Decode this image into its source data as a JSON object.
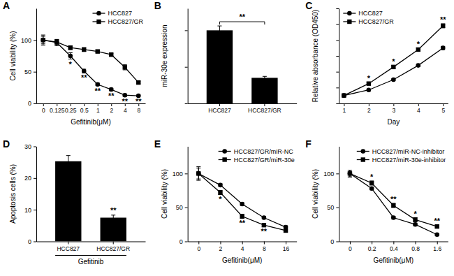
{
  "chart_data": [
    {
      "type": "line",
      "panel_label": "A",
      "categories": [
        "0",
        "0.125",
        "0.25",
        "0.5",
        "1",
        "2",
        "4",
        "8"
      ],
      "x_label": "Gefitinib(μM)",
      "y_label": "Cell viability (%)",
      "ylim": [
        0,
        150
      ],
      "yticks": [
        0,
        50,
        100
      ],
      "legend": "upper right",
      "series": [
        {
          "name": "HCC827",
          "color": "#000000",
          "marker": "circle",
          "values": [
            100,
            96,
            75,
            51,
            30,
            22,
            13,
            12
          ],
          "errors": [
            8,
            5,
            5,
            3,
            2,
            2,
            2,
            1
          ]
        },
        {
          "name": "HCC827/GR",
          "color": "#000000",
          "marker": "square",
          "values": [
            100,
            97,
            88,
            85,
            82,
            77,
            57,
            33
          ],
          "errors": [
            6,
            4,
            3,
            3,
            2,
            2,
            4,
            2
          ]
        }
      ],
      "significance": [
        null,
        null,
        "*",
        "**",
        "**",
        "**",
        "**",
        "**"
      ]
    },
    {
      "type": "bar",
      "panel_label": "B",
      "categories": [
        "HCC827",
        "HCC827/GR"
      ],
      "y_label": "miR-30e expression",
      "values": [
        1,
        0.35
      ],
      "errors": [
        0.06,
        0.02
      ],
      "color": "#000000",
      "ylim": [
        0,
        1.3
      ],
      "yticks": [
        0,
        0.5,
        1
      ],
      "tick_labels": "x",
      "significance": "**"
    },
    {
      "type": "line",
      "panel_label": "C",
      "x": [
        1,
        2,
        3,
        4,
        5
      ],
      "xlim": [
        0.8,
        5.2
      ],
      "xticks": [
        1,
        2,
        3,
        4,
        5
      ],
      "x_label": "Day",
      "y_label": "Relative absorbance (OD450)",
      "ylim": [
        0,
        12
      ],
      "yticks": [
        0,
        2,
        4,
        6,
        8,
        10,
        12
      ],
      "tick_labels": "x",
      "legend": "upper left",
      "series": [
        {
          "name": "HCC827",
          "color": "#000000",
          "marker": "circle",
          "values": [
            1,
            1.7,
            3,
            4.8,
            7
          ],
          "errors": [
            0.05,
            0.1,
            0.1,
            0.15,
            0.2
          ]
        },
        {
          "name": "HCC827/GR",
          "color": "#000000",
          "marker": "square",
          "values": [
            1,
            2.5,
            4.6,
            6.8,
            9.8
          ],
          "errors": [
            0.05,
            0.15,
            0.15,
            0.2,
            0.25
          ]
        }
      ],
      "significance": [
        null,
        "*",
        "*",
        "*",
        "**"
      ]
    },
    {
      "type": "bar",
      "panel_label": "D",
      "categories": [
        "HCC827",
        "HCC827/GR"
      ],
      "group_label": "Gefitinib",
      "y_label": "Apoptosis cells (%)",
      "values": [
        25.3,
        7.5
      ],
      "errors": [
        1.8,
        0.8
      ],
      "color": "#000000",
      "ylim": [
        0,
        30
      ],
      "yticks": [
        0,
        10,
        20,
        30
      ],
      "significance": [
        null,
        "**"
      ]
    },
    {
      "type": "line",
      "panel_label": "E",
      "categories": [
        "0",
        "2",
        "4",
        "8",
        "16"
      ],
      "x_label": "Gefitinib(μM)",
      "y_label": "Cell viability (%)",
      "ylim": [
        0,
        140
      ],
      "yticks": [
        0,
        50,
        100
      ],
      "legend": "upper right",
      "series": [
        {
          "name": "HCC827/GR/miR-NC",
          "color": "#000000",
          "marker": "circle",
          "values": [
            100,
            83,
            55,
            35,
            21
          ],
          "errors": [
            10,
            2,
            2,
            2,
            2
          ]
        },
        {
          "name": "HCC827/GR/miR-30e",
          "color": "#000000",
          "marker": "square",
          "values": [
            100,
            72,
            37,
            24,
            16
          ],
          "errors": [
            8,
            3,
            3,
            2,
            2
          ]
        }
      ],
      "significance": [
        null,
        "*",
        "**",
        "**",
        null
      ]
    },
    {
      "type": "line",
      "panel_label": "F",
      "categories": [
        "0",
        "0.2",
        "0.4",
        "0.8",
        "1.6"
      ],
      "x_label": "Gefitinib(μM)",
      "y_label": "Cell viability (%)",
      "ylim": [
        0,
        140
      ],
      "yticks": [
        0,
        50,
        100
      ],
      "legend": "upper right",
      "series": [
        {
          "name": "HCC827/miR-NC-inhibitor",
          "color": "#000000",
          "marker": "circle",
          "values": [
            100,
            78,
            35,
            25,
            10
          ],
          "errors": [
            5,
            2,
            2,
            2,
            1
          ]
        },
        {
          "name": "HCC827/miR-30e-inhibitor",
          "color": "#000000",
          "marker": "square",
          "values": [
            100,
            86,
            53,
            32,
            22
          ],
          "errors": [
            5,
            3,
            3,
            3,
            2
          ]
        }
      ],
      "significance": [
        null,
        "*",
        "**",
        "*",
        "**"
      ]
    }
  ]
}
